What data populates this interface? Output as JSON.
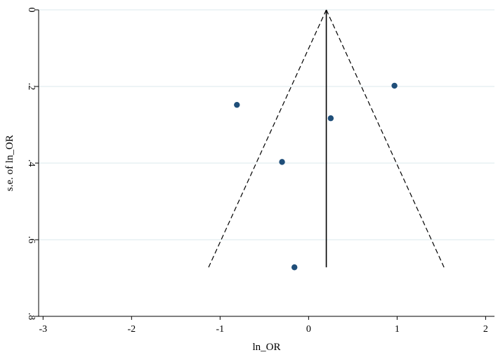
{
  "chart_data": {
    "type": "scatter",
    "title": "",
    "xlabel": "ln_OR",
    "ylabel": "s.e. of ln_OR",
    "xlim": [
      -3.05,
      2.1
    ],
    "ylim": [
      0,
      0.8
    ],
    "y_reversed": true,
    "x_ticks": [
      -3,
      -2,
      -1,
      0,
      1,
      2
    ],
    "x_tick_labels": [
      "-3",
      "-2",
      "-1",
      "0",
      "1",
      "2"
    ],
    "y_ticks": [
      0,
      0.2,
      0.4,
      0.6,
      0.8
    ],
    "y_tick_labels": [
      "0",
      ".2",
      ".4",
      ".6",
      ".8"
    ],
    "grid": "horizontal",
    "points": [
      {
        "x": 0.97,
        "y": 0.198
      },
      {
        "x": -0.81,
        "y": 0.248
      },
      {
        "x": 0.25,
        "y": 0.283
      },
      {
        "x": -0.3,
        "y": 0.397
      },
      {
        "x": -0.16,
        "y": 0.672
      }
    ],
    "pooled_estimate": 0.2,
    "pooled_line_ymax": 0.672,
    "ci_limits": {
      "apex": {
        "x": 0.2,
        "y": 0
      },
      "left_end": {
        "x": -1.13,
        "y": 0.672
      },
      "right_end": {
        "x": 1.53,
        "y": 0.672
      }
    },
    "colors": {
      "point": "#1f4e79",
      "grid": "#dbe9ee",
      "line": "#000000"
    }
  }
}
